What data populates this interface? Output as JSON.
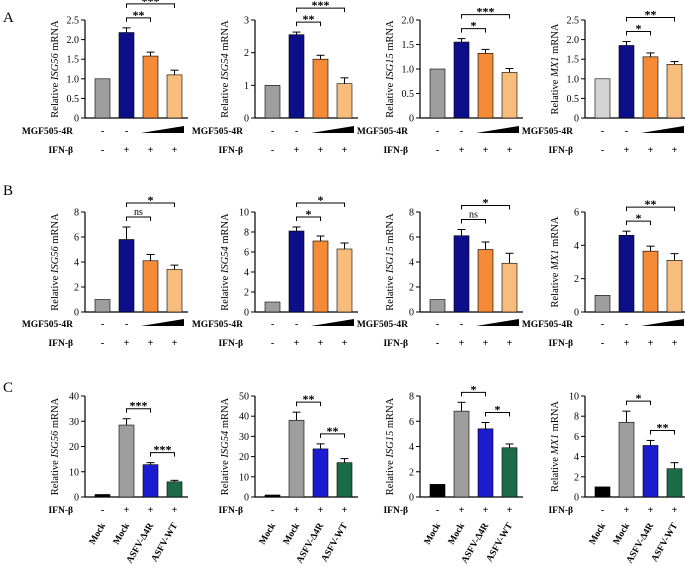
{
  "figure": {
    "row_labels": [
      "A",
      "B",
      "C"
    ],
    "conditions": {
      "virus_protein": "MGF505-4R",
      "cytokine": "IFN-β"
    },
    "colors": {
      "gray": "#9e9e9e",
      "light_gray": "#d4d4d4",
      "black": "#000000",
      "navy": "#0d0f8a",
      "orange": "#f58a37",
      "light_orange": "#f8bd7c",
      "blue": "#1b1bd0",
      "green": "#1b6b49"
    }
  },
  "chart_data": [
    {
      "type": "bar",
      "row": "A",
      "ylabel_prefix": "Relative ",
      "gene": "ISG56",
      "ylabel_suffix": " mRNA",
      "ylim": [
        0,
        2.5
      ],
      "ticks": [
        "0",
        "0.5",
        "1.0",
        "1.5",
        "2.0",
        "2.5"
      ],
      "values": [
        1.0,
        2.18,
        1.58,
        1.1
      ],
      "errors": [
        0,
        0.12,
        0.1,
        0.12
      ],
      "colors": [
        "#9e9e9e",
        "#0d0f8a",
        "#f58a37",
        "#f8bd7c"
      ],
      "sig": [
        {
          "from": 1,
          "to": 2,
          "label": "**"
        },
        {
          "from": 1,
          "to": 3,
          "label": "***"
        }
      ],
      "rows": [
        {
          "label": "MGF505-4R",
          "symbols": [
            "-",
            "-",
            "",
            ""
          ],
          "wedge": true
        },
        {
          "label": "IFN-β",
          "symbols": [
            "-",
            "+",
            "+",
            "+"
          ]
        }
      ]
    },
    {
      "type": "bar",
      "row": "A",
      "ylabel_prefix": "Relative ",
      "gene": "ISG54",
      "ylabel_suffix": " mRNA",
      "ylim": [
        0,
        3
      ],
      "ticks": [
        "0",
        "1",
        "2",
        "3"
      ],
      "values": [
        1.0,
        2.55,
        1.8,
        1.05
      ],
      "errors": [
        0,
        0.08,
        0.12,
        0.18
      ],
      "colors": [
        "#9e9e9e",
        "#0d0f8a",
        "#f58a37",
        "#f8bd7c"
      ],
      "sig": [
        {
          "from": 1,
          "to": 2,
          "label": "**"
        },
        {
          "from": 1,
          "to": 3,
          "label": "***"
        }
      ],
      "rows": [
        {
          "label": "MGF505-4R",
          "symbols": [
            "-",
            "-",
            "",
            ""
          ],
          "wedge": true
        },
        {
          "label": "IFN-β",
          "symbols": [
            "-",
            "+",
            "+",
            "+"
          ]
        }
      ]
    },
    {
      "type": "bar",
      "row": "A",
      "ylabel_prefix": "Relative ",
      "gene": "ISG15",
      "ylabel_suffix": " mRNA",
      "ylim": [
        0,
        2
      ],
      "ticks": [
        "0",
        "0.5",
        "1.0",
        "1.5",
        "2.0"
      ],
      "values": [
        1.0,
        1.55,
        1.32,
        0.93
      ],
      "errors": [
        0,
        0.07,
        0.08,
        0.08
      ],
      "colors": [
        "#9e9e9e",
        "#0d0f8a",
        "#f58a37",
        "#f8bd7c"
      ],
      "sig": [
        {
          "from": 1,
          "to": 2,
          "label": "*"
        },
        {
          "from": 1,
          "to": 3,
          "label": "***"
        }
      ],
      "rows": [
        {
          "label": "MGF505-4R",
          "symbols": [
            "-",
            "-",
            "",
            ""
          ],
          "wedge": true
        },
        {
          "label": "IFN-β",
          "symbols": [
            "-",
            "+",
            "+",
            "+"
          ]
        }
      ]
    },
    {
      "type": "bar",
      "row": "A",
      "ylabel_prefix": "Relative ",
      "gene": "MX1",
      "ylabel_suffix": " mRNA",
      "ylim": [
        0,
        2.5
      ],
      "ticks": [
        "0",
        "0.5",
        "1.0",
        "1.5",
        "2.0",
        "2.5"
      ],
      "values": [
        1.0,
        1.85,
        1.56,
        1.37
      ],
      "errors": [
        0,
        0.1,
        0.1,
        0.07
      ],
      "colors": [
        "#d4d4d4",
        "#0d0f8a",
        "#f58a37",
        "#f8bd7c"
      ],
      "sig": [
        {
          "from": 1,
          "to": 2,
          "label": "*"
        },
        {
          "from": 1,
          "to": 3,
          "label": "**"
        }
      ],
      "rows": [
        {
          "label": "MGF505-4R",
          "symbols": [
            "-",
            "-",
            "",
            ""
          ],
          "wedge": true
        },
        {
          "label": "IFN-β",
          "symbols": [
            "-",
            "+",
            "+",
            "+"
          ]
        }
      ]
    },
    {
      "type": "bar",
      "row": "B",
      "ylabel_prefix": "Relative ",
      "gene": "ISG56",
      "ylabel_suffix": " mRNA",
      "ylim": [
        0,
        8
      ],
      "ticks": [
        "0",
        "2",
        "4",
        "6",
        "8"
      ],
      "values": [
        1.0,
        5.8,
        4.1,
        3.4
      ],
      "errors": [
        0,
        1.0,
        0.5,
        0.35
      ],
      "colors": [
        "#9e9e9e",
        "#0d0f8a",
        "#f58a37",
        "#f8bd7c"
      ],
      "sig": [
        {
          "from": 1,
          "to": 2,
          "label": "ns"
        },
        {
          "from": 1,
          "to": 3,
          "label": "*"
        }
      ],
      "rows": [
        {
          "label": "MGF505-4R",
          "symbols": [
            "-",
            "-",
            "",
            ""
          ],
          "wedge": true
        },
        {
          "label": "IFN-β",
          "symbols": [
            "-",
            "+",
            "+",
            "+"
          ]
        }
      ]
    },
    {
      "type": "bar",
      "row": "B",
      "ylabel_prefix": "Relative ",
      "gene": "ISG54",
      "ylabel_suffix": " mRNA",
      "ylim": [
        0,
        10
      ],
      "ticks": [
        "0",
        "2",
        "4",
        "6",
        "8",
        "10"
      ],
      "values": [
        1.0,
        8.1,
        7.1,
        6.3
      ],
      "errors": [
        0,
        0.4,
        0.5,
        0.6
      ],
      "colors": [
        "#9e9e9e",
        "#0d0f8a",
        "#f58a37",
        "#f8bd7c"
      ],
      "sig": [
        {
          "from": 1,
          "to": 2,
          "label": "*"
        },
        {
          "from": 1,
          "to": 3,
          "label": "*"
        }
      ],
      "rows": [
        {
          "label": "MGF505-4R",
          "symbols": [
            "-",
            "-",
            "",
            ""
          ],
          "wedge": true
        },
        {
          "label": "IFN-β",
          "symbols": [
            "-",
            "+",
            "+",
            "+"
          ]
        }
      ]
    },
    {
      "type": "bar",
      "row": "B",
      "ylabel_prefix": "Relative ",
      "gene": "ISG15",
      "ylabel_suffix": " mRNA",
      "ylim": [
        0,
        8
      ],
      "ticks": [
        "0",
        "2",
        "4",
        "6",
        "8"
      ],
      "values": [
        1.0,
        6.1,
        5.0,
        3.9
      ],
      "errors": [
        0,
        0.5,
        0.6,
        0.8
      ],
      "colors": [
        "#9e9e9e",
        "#0d0f8a",
        "#f58a37",
        "#f8bd7c"
      ],
      "sig": [
        {
          "from": 1,
          "to": 2,
          "label": "ns"
        },
        {
          "from": 1,
          "to": 3,
          "label": "*"
        }
      ],
      "rows": [
        {
          "label": "MGF505-4R",
          "symbols": [
            "-",
            "-",
            "",
            ""
          ],
          "wedge": true
        },
        {
          "label": "IFN-β",
          "symbols": [
            "-",
            "+",
            "+",
            "+"
          ]
        }
      ]
    },
    {
      "type": "bar",
      "row": "B",
      "ylabel_prefix": "Relative ",
      "gene": "MX1",
      "ylabel_suffix": " mRNA",
      "ylim": [
        0,
        6
      ],
      "ticks": [
        "0",
        "2",
        "4",
        "6"
      ],
      "values": [
        1.0,
        4.6,
        3.65,
        3.1
      ],
      "errors": [
        0,
        0.25,
        0.3,
        0.4
      ],
      "colors": [
        "#9e9e9e",
        "#0d0f8a",
        "#f58a37",
        "#f8bd7c"
      ],
      "sig": [
        {
          "from": 1,
          "to": 2,
          "label": "*"
        },
        {
          "from": 1,
          "to": 3,
          "label": "**"
        }
      ],
      "rows": [
        {
          "label": "MGF505-4R",
          "symbols": [
            "-",
            "-",
            "",
            ""
          ],
          "wedge": true
        },
        {
          "label": "IFN-β",
          "symbols": [
            "-",
            "+",
            "+",
            "+"
          ]
        }
      ]
    },
    {
      "type": "bar",
      "row": "C",
      "ylabel_prefix": "Relative ",
      "gene": "ISG56",
      "ylabel_suffix": " mRNA",
      "ylim": [
        0,
        40
      ],
      "ticks": [
        "0",
        "10",
        "20",
        "30",
        "40"
      ],
      "values": [
        1.0,
        28.5,
        12.8,
        6.0
      ],
      "errors": [
        0,
        2.5,
        0.8,
        0.6
      ],
      "colors": [
        "#000000",
        "#9e9e9e",
        "#1b1bd0",
        "#1b6b49"
      ],
      "sig": [
        {
          "from": 1,
          "to": 2,
          "label": "***"
        },
        {
          "from": 2,
          "to": 3,
          "label": "***"
        }
      ],
      "rows": [
        {
          "label": "IFN-β",
          "symbols": [
            "-",
            "+",
            "+",
            "+"
          ]
        }
      ],
      "categories": [
        "Mock",
        "Mock",
        "ASFV-Δ4R",
        "ASFV-WT"
      ]
    },
    {
      "type": "bar",
      "row": "C",
      "ylabel_prefix": "Relative ",
      "gene": "ISG54",
      "ylabel_suffix": " mRNA",
      "ylim": [
        0,
        50
      ],
      "ticks": [
        "0",
        "10",
        "20",
        "30",
        "40",
        "50"
      ],
      "values": [
        1.0,
        38.0,
        23.8,
        17.0
      ],
      "errors": [
        0,
        4.0,
        2.5,
        2.0
      ],
      "colors": [
        "#000000",
        "#9e9e9e",
        "#1b1bd0",
        "#1b6b49"
      ],
      "sig": [
        {
          "from": 1,
          "to": 2,
          "label": "**"
        },
        {
          "from": 2,
          "to": 3,
          "label": "**"
        }
      ],
      "rows": [
        {
          "label": "IFN-β",
          "symbols": [
            "-",
            "+",
            "+",
            "+"
          ]
        }
      ],
      "categories": [
        "Mock",
        "Mock",
        "ASFV-Δ4R",
        "ASFV-WT"
      ]
    },
    {
      "type": "bar",
      "row": "C",
      "ylabel_prefix": "Relative ",
      "gene": "ISG15",
      "ylabel_suffix": " mRNA",
      "ylim": [
        0,
        8
      ],
      "ticks": [
        "0",
        "2",
        "4",
        "6",
        "8"
      ],
      "values": [
        1.0,
        6.8,
        5.4,
        3.9
      ],
      "errors": [
        0,
        0.7,
        0.5,
        0.3
      ],
      "colors": [
        "#000000",
        "#9e9e9e",
        "#1b1bd0",
        "#1b6b49"
      ],
      "sig": [
        {
          "from": 1,
          "to": 2,
          "label": "*"
        },
        {
          "from": 2,
          "to": 3,
          "label": "*"
        }
      ],
      "rows": [
        {
          "label": "IFN-β",
          "symbols": [
            "-",
            "+",
            "+",
            "+"
          ]
        }
      ],
      "categories": [
        "Mock",
        "Mock",
        "ASFV-Δ4R",
        "ASFV-WT"
      ]
    },
    {
      "type": "bar",
      "row": "C",
      "ylabel_prefix": "Relative ",
      "gene": "MX1",
      "ylabel_suffix": " mRNA",
      "ylim": [
        0,
        10
      ],
      "ticks": [
        "0",
        "2",
        "4",
        "6",
        "8",
        "10"
      ],
      "values": [
        1.0,
        7.4,
        5.1,
        2.8
      ],
      "errors": [
        0,
        1.1,
        0.5,
        0.6
      ],
      "colors": [
        "#000000",
        "#9e9e9e",
        "#1b1bd0",
        "#1b6b49"
      ],
      "sig": [
        {
          "from": 1,
          "to": 2,
          "label": "*"
        },
        {
          "from": 2,
          "to": 3,
          "label": "**"
        }
      ],
      "rows": [
        {
          "label": "IFN-β",
          "symbols": [
            "-",
            "+",
            "+",
            "+"
          ]
        }
      ],
      "categories": [
        "Mock",
        "Mock",
        "ASFV-Δ4R",
        "ASFV-WT"
      ]
    }
  ]
}
